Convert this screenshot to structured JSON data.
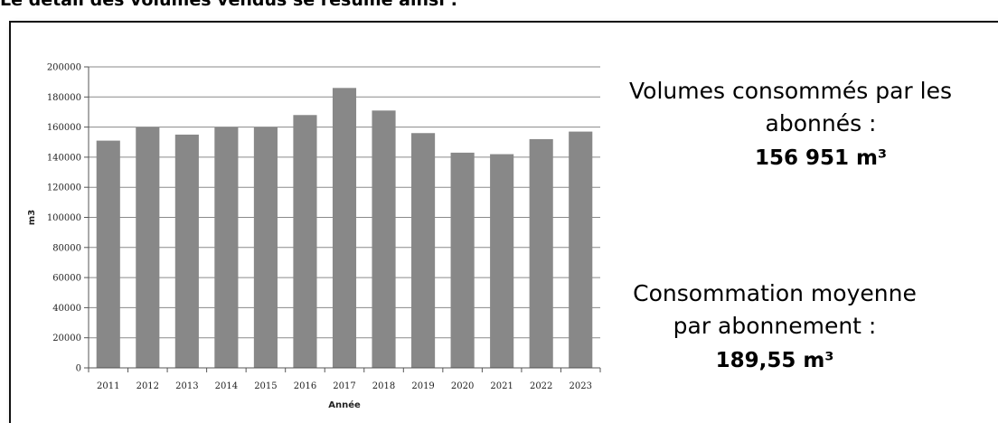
{
  "heading": "Le détail des volumes vendus se résume ainsi :",
  "info": {
    "volumes_line1": "Volumes consommés par les",
    "volumes_line2": "abonnés :",
    "volumes_value": "156 951 m³",
    "moyenne_line1": "Consommation moyenne",
    "moyenne_line2": "par abonnement :",
    "moyenne_value": "189,55 m³"
  },
  "chart_data": {
    "type": "bar",
    "categories": [
      "2011",
      "2012",
      "2013",
      "2014",
      "2015",
      "2016",
      "2017",
      "2018",
      "2019",
      "2020",
      "2021",
      "2022",
      "2023"
    ],
    "values": [
      151000,
      160000,
      155000,
      160000,
      160000,
      168000,
      186000,
      171000,
      156000,
      143000,
      142000,
      152000,
      157000
    ],
    "xlabel": "Année",
    "ylabel": "m3",
    "ylim": [
      0,
      200000
    ],
    "yticks": [
      0,
      20000,
      40000,
      60000,
      80000,
      100000,
      120000,
      140000,
      160000,
      180000,
      200000
    ],
    "grid": true,
    "bar_color": "#888888"
  }
}
